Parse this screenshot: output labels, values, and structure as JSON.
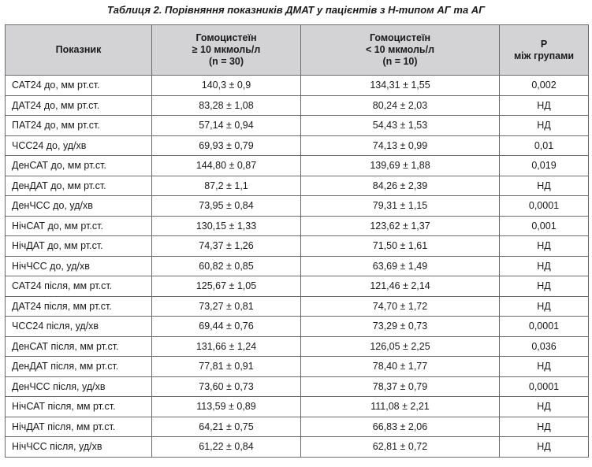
{
  "caption": "Таблиця 2. Порівняння показників ДМАТ у пацієнтів з Н-типом АГ та АГ",
  "columns": {
    "indicator": "Показник",
    "group1": [
      "Гомоцистеїн",
      "≥ 10 мкмоль/л",
      "(n = 30)"
    ],
    "group2": [
      "Гомоцистеїн",
      "< 10 мкмоль/л",
      "(n = 10)"
    ],
    "p": [
      "Р",
      "між групами"
    ]
  },
  "rows": [
    {
      "name": "САТ24 до, мм рт.ст.",
      "g1": "140,3 ± 0,9",
      "g2": "134,31 ± 1,55",
      "p": "0,002"
    },
    {
      "name": "ДАТ24 до, мм рт.ст.",
      "g1": "83,28 ± 1,08",
      "g2": "80,24 ± 2,03",
      "p": "НД"
    },
    {
      "name": "ПАТ24 до, мм рт.ст.",
      "g1": "57,14 ± 0,94",
      "g2": "54,43 ± 1,53",
      "p": "НД"
    },
    {
      "name": "ЧСС24 до, уд/хв",
      "g1": "69,93 ± 0,79",
      "g2": "74,13 ± 0,99",
      "p": "0,01"
    },
    {
      "name": "ДенСАТ до, мм рт.ст.",
      "g1": "144,80 ± 0,87",
      "g2": "139,69 ± 1,88",
      "p": "0,019"
    },
    {
      "name": "ДенДАТ до, мм рт.ст.",
      "g1": "87,2 ± 1,1",
      "g2": "84,26 ± 2,39",
      "p": "НД"
    },
    {
      "name": "ДенЧСС до, уд/хв",
      "g1": "73,95 ± 0,84",
      "g2": "79,31 ± 1,15",
      "p": "0,0001"
    },
    {
      "name": "НічСАТ до, мм рт.ст.",
      "g1": "130,15 ± 1,33",
      "g2": "123,62 ± 1,37",
      "p": "0,001"
    },
    {
      "name": "НічДАТ до, мм рт.ст.",
      "g1": "74,37 ± 1,26",
      "g2": "71,50 ± 1,61",
      "p": "НД"
    },
    {
      "name": "НічЧСС до, уд/хв",
      "g1": "60,82 ± 0,85",
      "g2": "63,69 ± 1,49",
      "p": "НД"
    },
    {
      "name": "САТ24 після, мм рт.ст.",
      "g1": "125,67 ± 1,05",
      "g2": "121,46 ± 2,14",
      "p": "НД"
    },
    {
      "name": "ДАТ24 після, мм рт.ст.",
      "g1": "73,27 ± 0,81",
      "g2": "74,70 ± 1,72",
      "p": "НД"
    },
    {
      "name": "ЧСС24 після, уд/хв",
      "g1": "69,44 ± 0,76",
      "g2": "73,29 ± 0,73",
      "p": "0,0001"
    },
    {
      "name": "ДенСАТ після, мм рт.ст.",
      "g1": "131,66 ± 1,24",
      "g2": "126,05 ± 2,25",
      "p": "0,036"
    },
    {
      "name": "ДенДАТ після, мм рт.ст.",
      "g1": "77,81 ± 0,91",
      "g2": "78,40 ± 1,77",
      "p": "НД"
    },
    {
      "name": "ДенЧСС після, уд/хв",
      "g1": "73,60 ± 0,73",
      "g2": "78,37 ± 0,79",
      "p": "0,0001"
    },
    {
      "name": "НічСАТ після, мм рт.ст.",
      "g1": "113,59 ± 0,89",
      "g2": "111,08 ± 2,21",
      "p": "НД"
    },
    {
      "name": "НічДАТ після, мм рт.ст.",
      "g1": "64,21 ± 0,75",
      "g2": "66,83 ± 2,06",
      "p": "НД"
    },
    {
      "name": "НічЧСС після, уд/хв",
      "g1": "61,22 ± 0,84",
      "g2": "62,81 ± 0,72",
      "p": "НД"
    }
  ]
}
